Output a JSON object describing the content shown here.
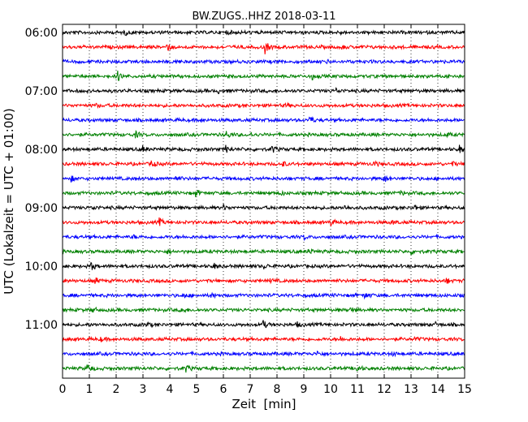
{
  "chart_data": {
    "type": "line",
    "title": "BW.ZUGS..HHZ 2018-03-11",
    "xlabel": "Zeit  [min]",
    "ylabel": "UTC (Lokalzeit = UTC + 01:00)",
    "xlim": [
      0,
      15
    ],
    "x_ticks": [
      0,
      1,
      2,
      3,
      4,
      5,
      6,
      7,
      8,
      9,
      10,
      11,
      12,
      13,
      14,
      15
    ],
    "x_tick_labels": [
      "0",
      "1",
      "2",
      "3",
      "4",
      "5",
      "6",
      "7",
      "8",
      "9",
      "10",
      "11",
      "12",
      "13",
      "14",
      "15"
    ],
    "y_tick_labels": [
      "06:00",
      "07:00",
      "08:00",
      "09:00",
      "10:00",
      "11:00"
    ],
    "grid": "vertical-dotted",
    "trace_colors": [
      "#000000",
      "#ff0000",
      "#0000ff",
      "#008000"
    ],
    "series": [
      {
        "start": "06:00",
        "color": "#000000",
        "events": [
          {
            "x": 2.3,
            "a": 0.45
          },
          {
            "x": 6.1,
            "a": 0.25
          },
          {
            "x": 10.3,
            "a": 0.25
          }
        ]
      },
      {
        "start": "06:15",
        "color": "#ff0000",
        "events": [
          {
            "x": 3.85,
            "a": 0.9
          },
          {
            "x": 7.55,
            "a": 1.0
          },
          {
            "x": 10.4,
            "a": 0.3
          }
        ]
      },
      {
        "start": "06:30",
        "color": "#0000ff",
        "events": [
          {
            "x": 4.2,
            "a": 0.3
          },
          {
            "x": 9.8,
            "a": 0.25
          }
        ]
      },
      {
        "start": "06:45",
        "color": "#008000",
        "events": [
          {
            "x": 2.05,
            "a": 0.8
          },
          {
            "x": 9.3,
            "a": 0.5
          },
          {
            "x": 14.4,
            "a": 0.3
          }
        ]
      },
      {
        "start": "07:00",
        "color": "#000000",
        "events": [
          {
            "x": 5.8,
            "a": 0.3
          },
          {
            "x": 10.2,
            "a": 0.3
          }
        ]
      },
      {
        "start": "07:15",
        "color": "#ff0000",
        "events": [
          {
            "x": 1.2,
            "a": 0.3
          },
          {
            "x": 8.3,
            "a": 0.3
          }
        ]
      },
      {
        "start": "07:30",
        "color": "#0000ff",
        "events": [
          {
            "x": 5.1,
            "a": 0.3
          },
          {
            "x": 9.2,
            "a": 0.7
          }
        ]
      },
      {
        "start": "07:45",
        "color": "#008000",
        "events": [
          {
            "x": 2.7,
            "a": 0.55
          },
          {
            "x": 6.1,
            "a": 0.6
          },
          {
            "x": 6.95,
            "a": 0.5
          },
          {
            "x": 14.3,
            "a": 0.35
          }
        ]
      },
      {
        "start": "08:00",
        "color": "#000000",
        "events": [
          {
            "x": 2.95,
            "a": 0.6
          },
          {
            "x": 6.05,
            "a": 0.8
          },
          {
            "x": 7.8,
            "a": 0.6
          },
          {
            "x": 14.8,
            "a": 0.6
          }
        ]
      },
      {
        "start": "08:15",
        "color": "#ff0000",
        "events": [
          {
            "x": 3.3,
            "a": 0.7
          },
          {
            "x": 8.2,
            "a": 0.45
          },
          {
            "x": 11.6,
            "a": 0.4
          },
          {
            "x": 14.5,
            "a": 0.4
          }
        ]
      },
      {
        "start": "08:30",
        "color": "#0000ff",
        "events": [
          {
            "x": 0.3,
            "a": 0.5
          },
          {
            "x": 4.2,
            "a": 0.5
          },
          {
            "x": 11.95,
            "a": 0.8
          }
        ]
      },
      {
        "start": "08:45",
        "color": "#008000",
        "events": [
          {
            "x": 4.95,
            "a": 0.6
          },
          {
            "x": 8.1,
            "a": 0.35
          },
          {
            "x": 12.6,
            "a": 0.4
          }
        ]
      },
      {
        "start": "09:00",
        "color": "#000000",
        "events": [
          {
            "x": 1.1,
            "a": 0.45
          },
          {
            "x": 6.0,
            "a": 0.35
          },
          {
            "x": 10.5,
            "a": 0.4
          },
          {
            "x": 13.05,
            "a": 0.7
          }
        ]
      },
      {
        "start": "09:15",
        "color": "#ff0000",
        "events": [
          {
            "x": 3.6,
            "a": 0.6
          },
          {
            "x": 9.95,
            "a": 0.7
          },
          {
            "x": 12.3,
            "a": 0.35
          }
        ]
      },
      {
        "start": "09:30",
        "color": "#0000ff",
        "events": [
          {
            "x": 2.6,
            "a": 0.3
          },
          {
            "x": 8.95,
            "a": 0.45
          }
        ]
      },
      {
        "start": "09:45",
        "color": "#008000",
        "events": [
          {
            "x": 3.9,
            "a": 0.35
          },
          {
            "x": 9.15,
            "a": 0.5
          },
          {
            "x": 13.0,
            "a": 0.35
          }
        ]
      },
      {
        "start": "10:00",
        "color": "#000000",
        "events": [
          {
            "x": 1.05,
            "a": 0.7
          },
          {
            "x": 5.6,
            "a": 0.6
          },
          {
            "x": 7.5,
            "a": 0.35
          }
        ]
      },
      {
        "start": "10:15",
        "color": "#ff0000",
        "events": [
          {
            "x": 1.2,
            "a": 0.55
          },
          {
            "x": 7.7,
            "a": 0.35
          },
          {
            "x": 14.3,
            "a": 0.5
          }
        ]
      },
      {
        "start": "10:30",
        "color": "#0000ff",
        "events": [
          {
            "x": 4.5,
            "a": 0.5
          },
          {
            "x": 5.5,
            "a": 0.4
          },
          {
            "x": 11.25,
            "a": 0.6
          }
        ]
      },
      {
        "start": "10:45",
        "color": "#008000",
        "events": [
          {
            "x": 1.1,
            "a": 0.45
          },
          {
            "x": 4.4,
            "a": 0.6
          },
          {
            "x": 10.7,
            "a": 0.6
          }
        ]
      },
      {
        "start": "11:00",
        "color": "#000000",
        "events": [
          {
            "x": 3.1,
            "a": 0.3
          },
          {
            "x": 7.45,
            "a": 0.8
          },
          {
            "x": 8.75,
            "a": 0.4
          },
          {
            "x": 13.9,
            "a": 0.3
          }
        ]
      },
      {
        "start": "11:15",
        "color": "#ff0000",
        "events": [
          {
            "x": 1.4,
            "a": 0.3
          },
          {
            "x": 10.3,
            "a": 0.55
          },
          {
            "x": 13.1,
            "a": 0.3
          }
        ]
      },
      {
        "start": "11:30",
        "color": "#0000ff",
        "events": [
          {
            "x": 9.5,
            "a": 0.4
          },
          {
            "x": 12.3,
            "a": 0.3
          }
        ]
      },
      {
        "start": "11:45",
        "color": "#008000",
        "events": [
          {
            "x": 0.9,
            "a": 0.7
          },
          {
            "x": 4.6,
            "a": 0.5
          },
          {
            "x": 10.95,
            "a": 0.7
          }
        ]
      }
    ]
  }
}
